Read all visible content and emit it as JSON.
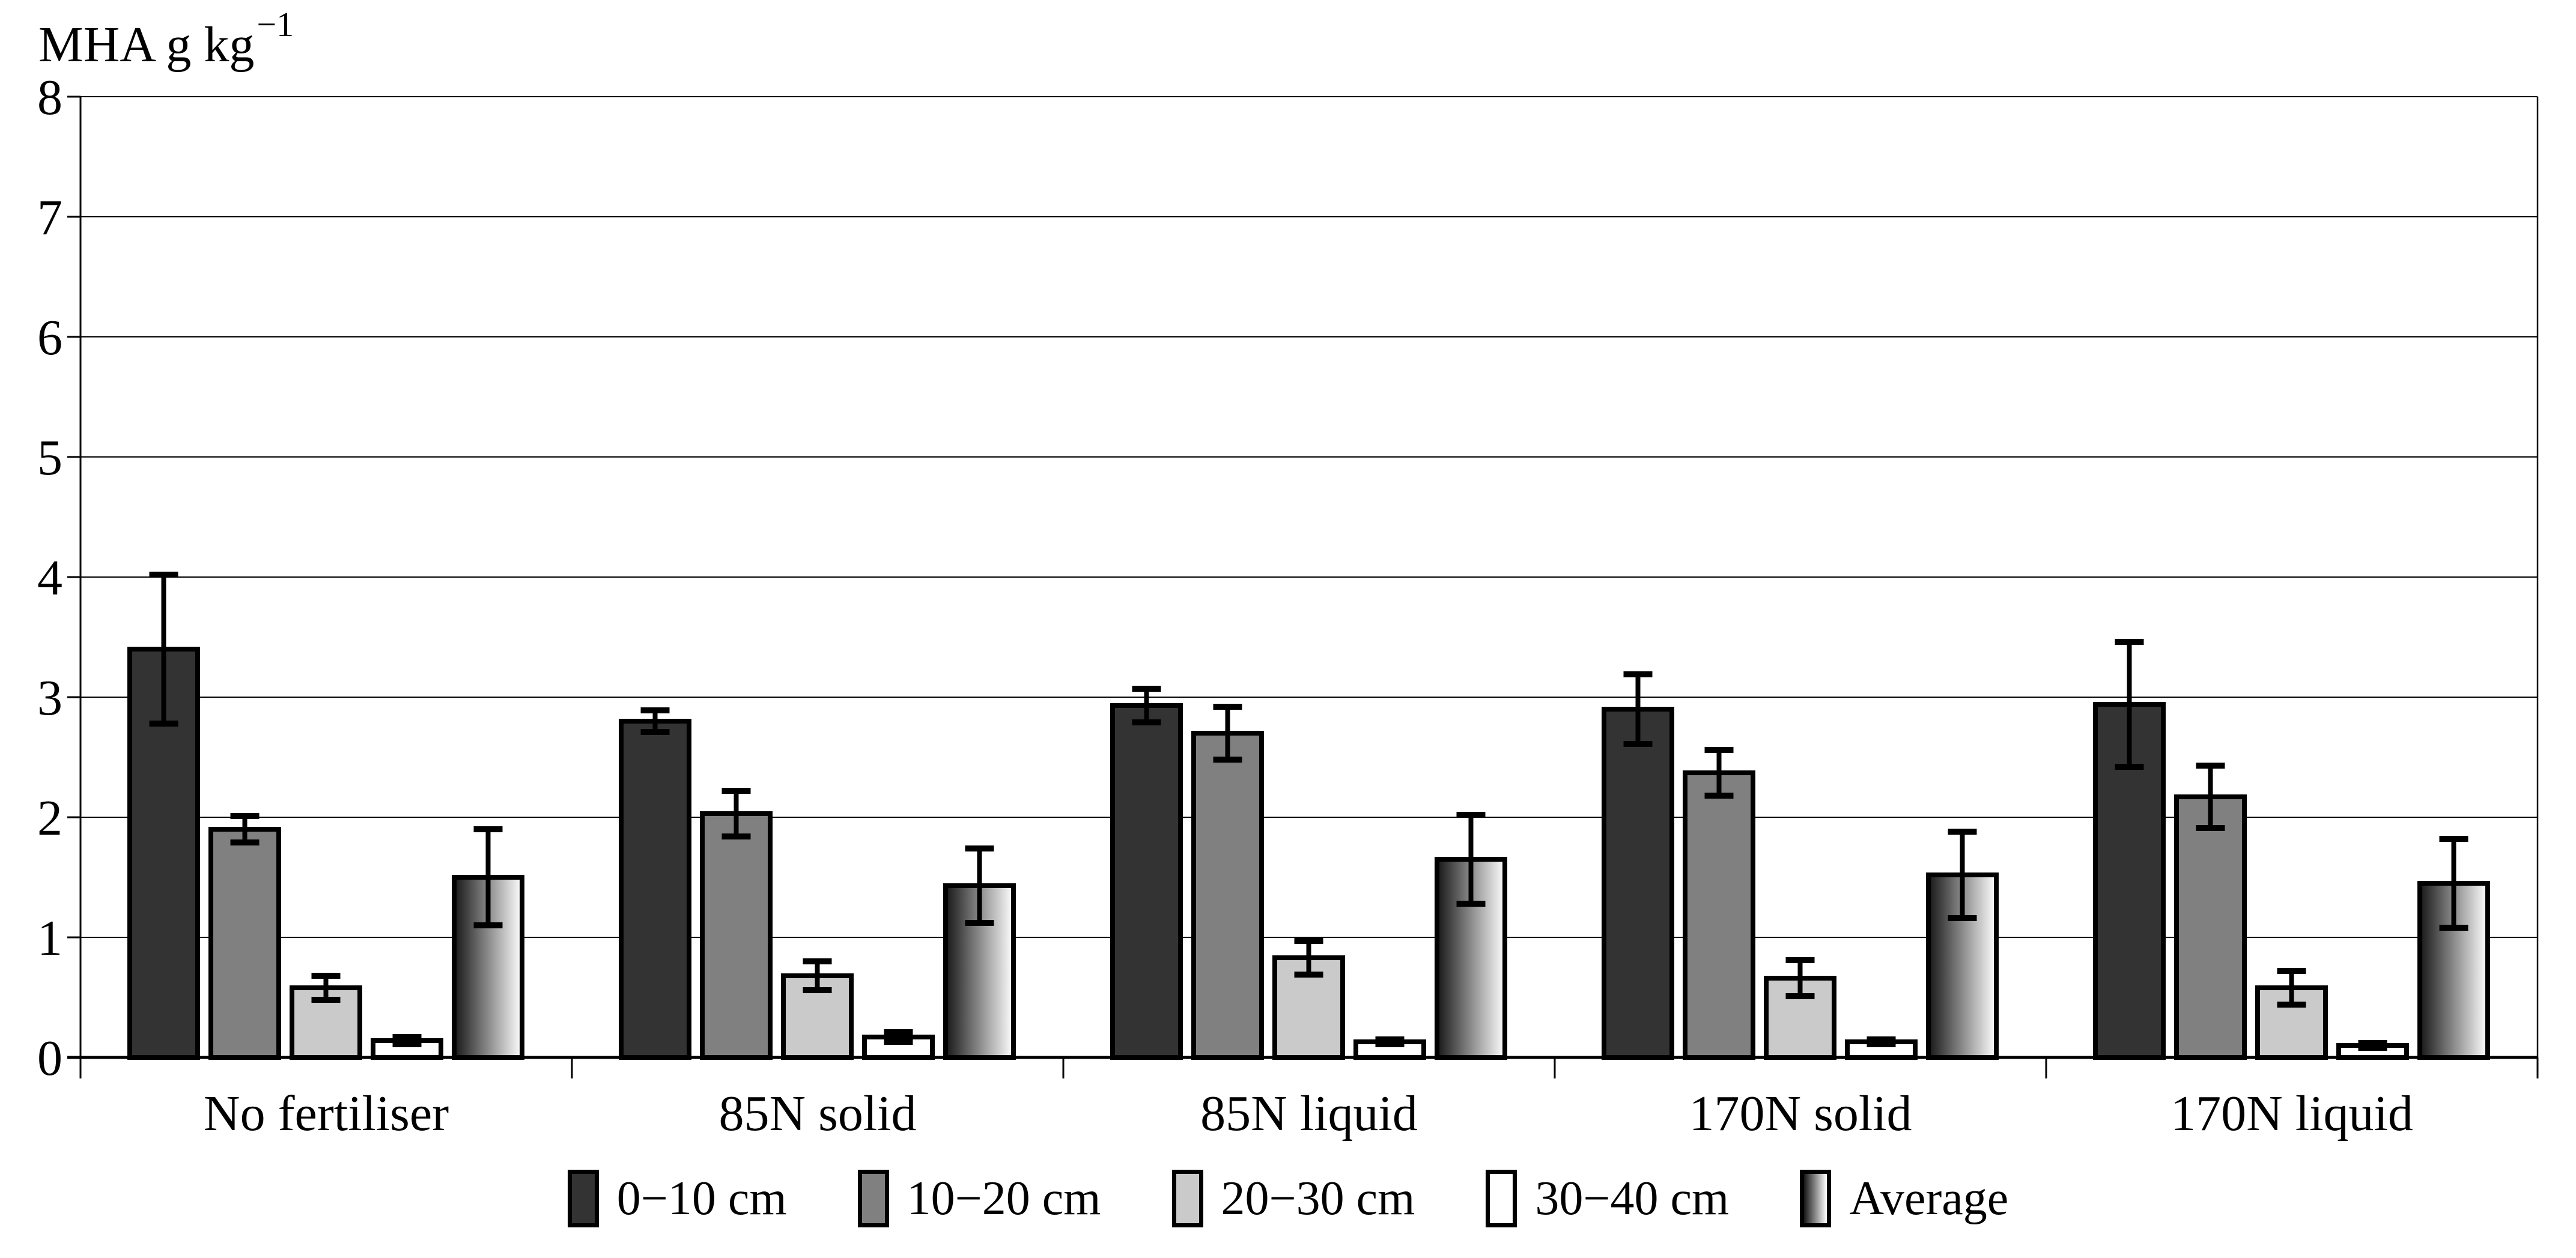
{
  "chart_data": {
    "type": "bar",
    "title": "MHA g kg−1",
    "ylabel_base": "MHA g kg",
    "ylabel_superscript": "−1",
    "xlabel": "",
    "categories": [
      "No fertiliser",
      "85N solid",
      "85N liquid",
      "170N solid",
      "170N liquid"
    ],
    "series": [
      {
        "name": "0−10 cm",
        "fill": "#333333",
        "values": [
          3.4,
          2.8,
          2.93,
          2.9,
          2.94
        ],
        "errors": [
          0.62,
          0.09,
          0.14,
          0.29,
          0.52
        ]
      },
      {
        "name": "10−20 cm",
        "fill": "#808080",
        "values": [
          1.9,
          2.03,
          2.7,
          2.37,
          2.17
        ],
        "errors": [
          0.11,
          0.19,
          0.22,
          0.19,
          0.26
        ]
      },
      {
        "name": "20−30 cm",
        "fill": "#cacaca",
        "values": [
          0.58,
          0.68,
          0.83,
          0.66,
          0.58
        ],
        "errors": [
          0.1,
          0.12,
          0.14,
          0.15,
          0.14
        ]
      },
      {
        "name": "30−40 cm",
        "fill": "#ffffff",
        "values": [
          0.14,
          0.17,
          0.13,
          0.13,
          0.1
        ],
        "errors": [
          0.03,
          0.04,
          0.02,
          0.02,
          0.02
        ]
      },
      {
        "name": "Average",
        "fill": "gradient",
        "gradient_from": "#161616",
        "gradient_to": "#ffffff",
        "values": [
          1.5,
          1.43,
          1.65,
          1.52,
          1.45
        ],
        "errors": [
          0.4,
          0.31,
          0.37,
          0.36,
          0.37
        ]
      }
    ],
    "ylim": [
      0,
      8
    ],
    "yticks": [
      0,
      1,
      2,
      3,
      4,
      5,
      6,
      7,
      8
    ],
    "grid": true,
    "legend_position": "bottom",
    "bar_edge_color": "#000000",
    "error_bar_color": "#000000",
    "axis_color": "#000000",
    "gridline_color": "#000000",
    "background_color": "#ffffff"
  }
}
